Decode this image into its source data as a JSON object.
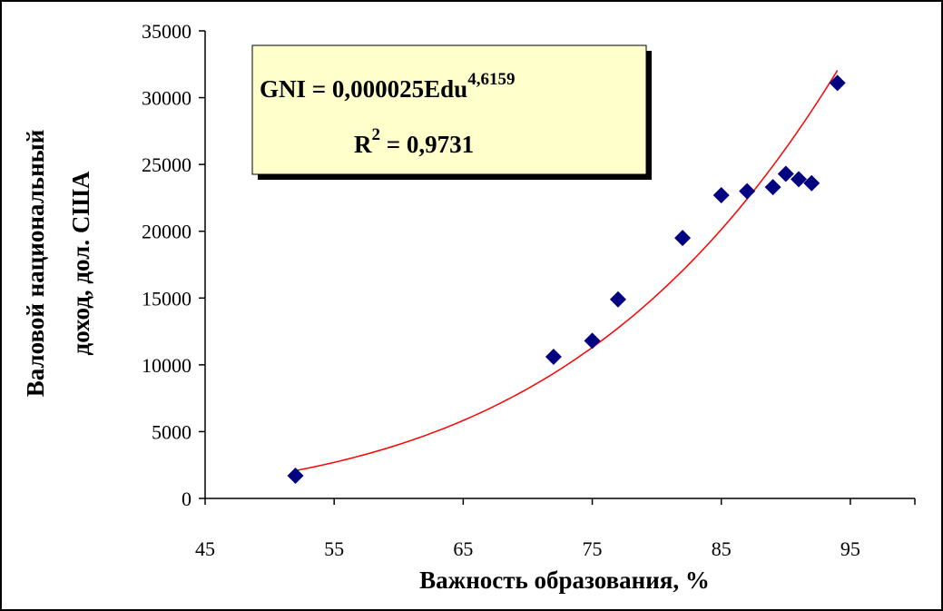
{
  "chart_data": {
    "type": "scatter",
    "xlabel": "Важность образования, %",
    "ylabel_line1": "Валовой национальный",
    "ylabel_line2": "доход, дол. США",
    "xlim": [
      45,
      100
    ],
    "ylim": [
      0,
      35000
    ],
    "x_ticks": [
      "45",
      "55",
      "65",
      "75",
      "85",
      "95"
    ],
    "y_ticks": [
      "0",
      "5000",
      "10000",
      "15000",
      "20000",
      "25000",
      "30000",
      "35000"
    ],
    "points": [
      {
        "x": 52,
        "y": 1700
      },
      {
        "x": 72,
        "y": 10600
      },
      {
        "x": 75,
        "y": 11800
      },
      {
        "x": 77,
        "y": 14900
      },
      {
        "x": 82,
        "y": 19500
      },
      {
        "x": 85,
        "y": 22700
      },
      {
        "x": 87,
        "y": 23000
      },
      {
        "x": 89,
        "y": 23300
      },
      {
        "x": 90,
        "y": 24300
      },
      {
        "x": 91,
        "y": 23900
      },
      {
        "x": 92,
        "y": 23600
      },
      {
        "x": 94,
        "y": 31100
      }
    ],
    "trendline": {
      "type": "power",
      "coefficient": 2.5e-05,
      "exponent": 4.6159,
      "x_range": [
        52,
        94
      ],
      "color": "#ff0000"
    },
    "equation": {
      "line1_prefix": "GNI = 0,000025Edu",
      "line1_exponent": "4,6159",
      "line2_base": "R",
      "line2_exponent": "2",
      "line2_suffix": " = 0,9731"
    },
    "marker_color": "#000080",
    "equation_box_color": "#ffffcc",
    "grid": false
  }
}
